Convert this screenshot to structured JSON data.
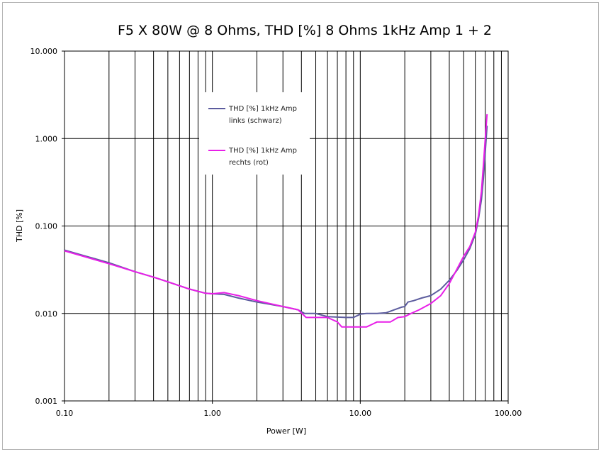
{
  "chart_data": {
    "type": "line",
    "title": "F5 X 80W @ 8 Ohms, THD [%] 8 Ohms 1kHz Amp 1 + 2",
    "xlabel": "Power [W]",
    "ylabel": "THD [%]",
    "x_scale": "log",
    "y_scale": "log",
    "xlim": [
      0.1,
      100
    ],
    "ylim": [
      0.001,
      10
    ],
    "x_ticks": [
      "0.10",
      "1.00",
      "10.00",
      "100.00"
    ],
    "y_ticks": [
      "0.001",
      "0.010",
      "0.100",
      "1.000",
      "10.000"
    ],
    "grid": "vertical minor and major lines, horizontal major lines",
    "legend_position": "upper-left inside plot",
    "series": [
      {
        "name_lines": [
          "THD [%] 1kHz Amp",
          "links (schwarz)"
        ],
        "color": "#5c5c9e",
        "points": [
          [
            0.1,
            0.053
          ],
          [
            0.2,
            0.038
          ],
          [
            0.3,
            0.03
          ],
          [
            0.4,
            0.026
          ],
          [
            0.5,
            0.023
          ],
          [
            0.7,
            0.019
          ],
          [
            0.9,
            0.017
          ],
          [
            1.0,
            0.0168
          ],
          [
            1.2,
            0.0165
          ],
          [
            1.5,
            0.015
          ],
          [
            2.0,
            0.0135
          ],
          [
            3.0,
            0.012
          ],
          [
            3.8,
            0.011
          ],
          [
            4.2,
            0.01
          ],
          [
            5.0,
            0.01
          ],
          [
            6.0,
            0.0092
          ],
          [
            8.0,
            0.009
          ],
          [
            9.0,
            0.009
          ],
          [
            10.0,
            0.0098
          ],
          [
            11.0,
            0.01
          ],
          [
            13.0,
            0.01
          ],
          [
            15.0,
            0.0102
          ],
          [
            17.0,
            0.011
          ],
          [
            19.0,
            0.0118
          ],
          [
            20.0,
            0.012
          ],
          [
            21.0,
            0.0135
          ],
          [
            23.0,
            0.014
          ],
          [
            26.0,
            0.015
          ],
          [
            30.0,
            0.016
          ],
          [
            35.0,
            0.019
          ],
          [
            40.0,
            0.024
          ],
          [
            45.0,
            0.031
          ],
          [
            50.0,
            0.041
          ],
          [
            55.0,
            0.055
          ],
          [
            60.0,
            0.08
          ],
          [
            63.0,
            0.12
          ],
          [
            66.0,
            0.2
          ],
          [
            68.0,
            0.35
          ],
          [
            70.0,
            0.7
          ],
          [
            72.0,
            1.4
          ]
        ]
      },
      {
        "name_lines": [
          "THD [%] 1kHz Amp",
          "rechts (rot)"
        ],
        "color": "#e81fe8",
        "points": [
          [
            0.1,
            0.052
          ],
          [
            0.2,
            0.037
          ],
          [
            0.3,
            0.03
          ],
          [
            0.4,
            0.026
          ],
          [
            0.5,
            0.023
          ],
          [
            0.7,
            0.019
          ],
          [
            0.9,
            0.017
          ],
          [
            1.0,
            0.0168
          ],
          [
            1.2,
            0.0173
          ],
          [
            1.5,
            0.016
          ],
          [
            2.0,
            0.014
          ],
          [
            3.0,
            0.012
          ],
          [
            3.8,
            0.011
          ],
          [
            4.3,
            0.009
          ],
          [
            5.0,
            0.009
          ],
          [
            6.0,
            0.009
          ],
          [
            7.0,
            0.008
          ],
          [
            7.5,
            0.007
          ],
          [
            10.0,
            0.007
          ],
          [
            11.0,
            0.007
          ],
          [
            12.0,
            0.0075
          ],
          [
            13.0,
            0.008
          ],
          [
            16.0,
            0.008
          ],
          [
            18.0,
            0.009
          ],
          [
            20.0,
            0.0092
          ],
          [
            22.0,
            0.01
          ],
          [
            25.0,
            0.011
          ],
          [
            30.0,
            0.013
          ],
          [
            35.0,
            0.016
          ],
          [
            40.0,
            0.022
          ],
          [
            45.0,
            0.032
          ],
          [
            50.0,
            0.045
          ],
          [
            55.0,
            0.058
          ],
          [
            60.0,
            0.085
          ],
          [
            63.0,
            0.13
          ],
          [
            66.0,
            0.25
          ],
          [
            68.0,
            0.5
          ],
          [
            70.0,
            1.0
          ],
          [
            72.0,
            1.9
          ]
        ]
      }
    ]
  }
}
